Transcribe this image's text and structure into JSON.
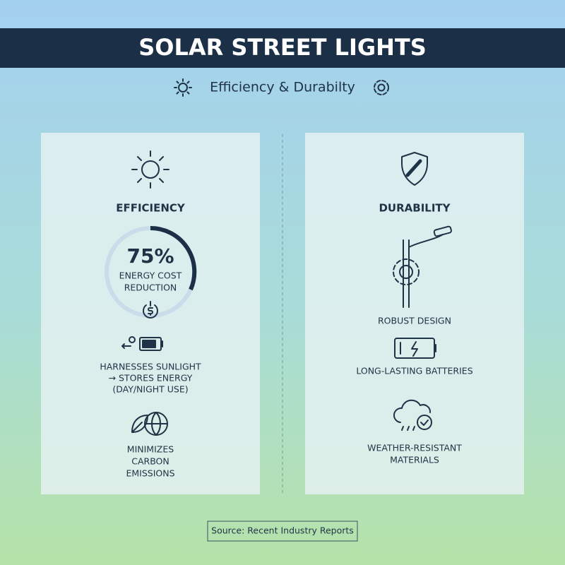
{
  "header": {
    "title": "SOLAR STREET LIGHTS",
    "subtitle": "Efficiency & Durabilty"
  },
  "efficiency": {
    "heading": "EFFICIENCY",
    "stat": "75%",
    "stat_label": [
      "ENERGY COST",
      "REDUCTION"
    ],
    "items": [
      [
        "HARNESSES SUNLIGHT",
        "→ STORES ENERGY",
        "(DAY/NIGHT USE)"
      ],
      [
        "MINIMIZES",
        "CARBON",
        "EMISSIONS"
      ]
    ]
  },
  "durability": {
    "heading": "DURABILITY",
    "items": [
      [
        "ROBUST DESIGN"
      ],
      [
        "LONG-LASTING BATTERIES"
      ],
      [
        "WEATHER-RESISTANT",
        "MATERIALS"
      ]
    ]
  },
  "source": "Source: Recent Industry Reports"
}
